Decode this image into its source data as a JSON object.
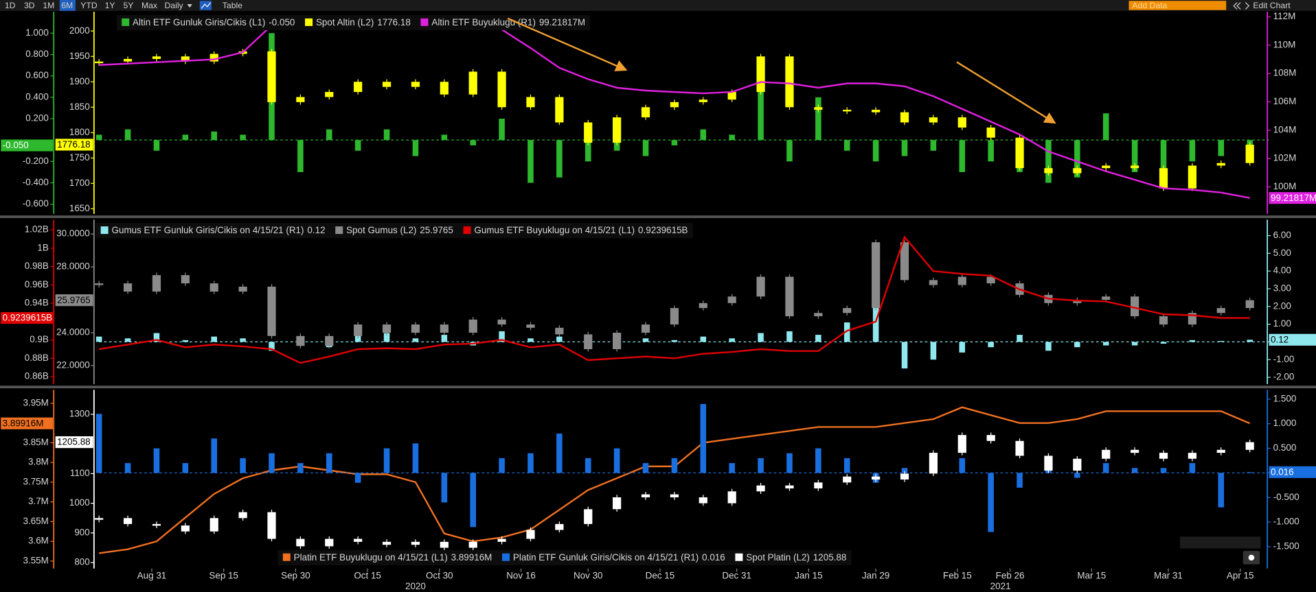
{
  "toolbar": {
    "buttons": [
      "1D",
      "3D",
      "1M",
      "6M",
      "YTD",
      "1Y",
      "5Y",
      "Max",
      "Daily",
      "Table"
    ],
    "add_data": "Add Data",
    "edit_chart": "Edit Chart"
  },
  "chart_data": [
    {
      "type": "combo",
      "x": [
        "2020-08-20",
        "2020-08-26",
        "2020-09-01",
        "2020-09-07",
        "2020-09-13",
        "2020-09-19",
        "2020-09-25",
        "2020-10-01",
        "2020-10-07",
        "2020-10-13",
        "2020-10-19",
        "2020-10-25",
        "2020-10-31",
        "2020-11-06",
        "2020-11-12",
        "2020-11-18",
        "2020-11-24",
        "2020-11-30",
        "2020-12-06",
        "2020-12-12",
        "2020-12-18",
        "2020-12-24",
        "2020-12-30",
        "2021-01-05",
        "2021-01-11",
        "2021-01-17",
        "2021-01-23",
        "2021-01-29",
        "2021-02-04",
        "2021-02-10",
        "2021-02-16",
        "2021-02-22",
        "2021-02-28",
        "2021-03-06",
        "2021-03-12",
        "2021-03-18",
        "2021-03-24",
        "2021-03-30",
        "2021-04-05",
        "2021-04-11",
        "2021-04-17"
      ],
      "xlim": [
        "2020-08-20",
        "2021-04-21"
      ],
      "axes": {
        "L1": {
          "ylim": [
            -0.69,
            1.2
          ],
          "yticks": [
            {
              "value": 1,
              "label": "1.000"
            },
            {
              "value": 0.8,
              "label": "0.800"
            },
            {
              "value": 0.6,
              "label": "0.600"
            },
            {
              "value": 0.4,
              "label": "0.400"
            },
            {
              "value": 0.2,
              "label": "0.200"
            },
            {
              "value": -0.2,
              "label": "-0.200"
            },
            {
              "value": -0.4,
              "label": "-0.400"
            },
            {
              "value": -0.6,
              "label": "-0.600"
            }
          ]
        },
        "L2": {
          "ylim": [
            1640,
            2038
          ],
          "yticks": [
            2000,
            1950,
            1900,
            1850,
            1800,
            1750,
            1700,
            1650
          ]
        },
        "R1": {
          "ylim": [
            98.1,
            112.36
          ],
          "yticks": [
            {
              "value": 112,
              "label": "112M"
            },
            {
              "value": 110,
              "label": "110M"
            },
            {
              "value": 108,
              "label": "108M"
            },
            {
              "value": 106,
              "label": "106M"
            },
            {
              "value": 104,
              "label": "104M"
            },
            {
              "value": 102,
              "label": "102M"
            },
            {
              "value": 100,
              "label": "100M"
            }
          ]
        }
      },
      "series": [
        {
          "name": "Altin ETF Gunluk Giris/Cikis (L1)",
          "type": "bar",
          "axis": "L1",
          "color": "#2db82d",
          "last": {
            "value": -0.05,
            "label": "-0.050"
          },
          "values": [
            0.05,
            0.1,
            -0.1,
            0.05,
            0.08,
            0.05,
            1.0,
            -0.3,
            0.1,
            -0.1,
            0.1,
            -0.15,
            0.05,
            -0.05,
            0.2,
            -0.4,
            -0.35,
            -0.2,
            -0.1,
            -0.15,
            -0.05,
            0.1,
            0.05,
            0.5,
            -0.2,
            0.4,
            -0.1,
            -0.2,
            -0.15,
            -0.1,
            -0.3,
            -0.2,
            -0.3,
            -0.4,
            -0.35,
            0.25,
            -0.3,
            -0.3,
            -0.2,
            -0.15,
            -0.05
          ]
        },
        {
          "name": "Spot Altin (L2)",
          "type": "candlestick",
          "axis": "L2",
          "color": "#ffff00",
          "last": 1776.18,
          "values": [
            1940,
            1945,
            1950,
            1940,
            1955,
            1960,
            1860,
            1870,
            1880,
            1900,
            1890,
            1900,
            1875,
            1920,
            1850,
            1870,
            1820,
            1780,
            1830,
            1850,
            1860,
            1865,
            1880,
            1950,
            1850,
            1845,
            1845,
            1840,
            1820,
            1830,
            1810,
            1790,
            1730,
            1720,
            1730,
            1735,
            1730,
            1690,
            1735,
            1740,
            1776.18
          ]
        },
        {
          "name": "Altin ETF Buyuklugu (R1)",
          "type": "line",
          "axis": "R1",
          "color": "#e020e0",
          "last": {
            "value": 99.21817,
            "label": "99.21817M"
          },
          "values": [
            108.6,
            108.7,
            108.8,
            108.9,
            109.0,
            109.5,
            111.4,
            111.2,
            111.4,
            111.5,
            111.6,
            111.7,
            111.8,
            111.8,
            111.1,
            109.8,
            108.4,
            107.6,
            107.0,
            106.8,
            106.7,
            106.6,
            106.7,
            107.4,
            107.3,
            107.0,
            107.3,
            107.3,
            107.1,
            106.4,
            105.5,
            104.6,
            103.7,
            102.5,
            101.8,
            101.1,
            100.5,
            99.9,
            99.8,
            99.6,
            99.22
          ]
        }
      ]
    },
    {
      "type": "combo",
      "x": [
        "2020-08-20",
        "2020-08-26",
        "2020-09-01",
        "2020-09-07",
        "2020-09-13",
        "2020-09-19",
        "2020-09-25",
        "2020-10-01",
        "2020-10-07",
        "2020-10-13",
        "2020-10-19",
        "2020-10-25",
        "2020-10-31",
        "2020-11-06",
        "2020-11-12",
        "2020-11-18",
        "2020-11-24",
        "2020-11-30",
        "2020-12-06",
        "2020-12-12",
        "2020-12-18",
        "2020-12-24",
        "2020-12-30",
        "2021-01-05",
        "2021-01-11",
        "2021-01-17",
        "2021-01-23",
        "2021-01-29",
        "2021-02-04",
        "2021-02-10",
        "2021-02-16",
        "2021-02-22",
        "2021-02-28",
        "2021-03-06",
        "2021-03-12",
        "2021-03-18",
        "2021-03-24",
        "2021-03-30",
        "2021-04-05",
        "2021-04-11",
        "2021-04-17"
      ],
      "xlim": [
        "2020-08-20",
        "2021-04-21"
      ],
      "axes": {
        "L1": {
          "ylim": [
            0.852,
            1.031
          ],
          "yticks": [
            {
              "value": 1.02,
              "label": "1.02B"
            },
            {
              "value": 1,
              "label": "1B"
            },
            {
              "value": 0.98,
              "label": "0.98B"
            },
            {
              "value": 0.96,
              "label": "0.96B"
            },
            {
              "value": 0.94,
              "label": "0.94B"
            },
            {
              "value": 0.9,
              "label": "0.9B"
            },
            {
              "value": 0.88,
              "label": "0.88B"
            },
            {
              "value": 0.86,
              "label": "0.86B"
            }
          ]
        },
        "L2": {
          "ylim": [
            20.88,
            30.87
          ],
          "yticks": [
            {
              "value": 30,
              "label": "30.0000"
            },
            {
              "value": 28,
              "label": "28.0000"
            },
            {
              "value": 24,
              "label": "24.0000"
            },
            {
              "value": 22,
              "label": "22.0000"
            }
          ]
        },
        "R1": {
          "ylim": [
            -2.38,
            6.9
          ],
          "yticks": [
            {
              "value": 6,
              "label": "6.00"
            },
            {
              "value": 5,
              "label": "5.00"
            },
            {
              "value": 4,
              "label": "4.00"
            },
            {
              "value": 3,
              "label": "3.00"
            },
            {
              "value": 2,
              "label": "2.00"
            },
            {
              "value": 1,
              "label": "1.00"
            },
            {
              "value": -1,
              "label": "-1.00"
            },
            {
              "value": -2,
              "label": "-2.00"
            }
          ]
        }
      },
      "series": [
        {
          "name": "Gumus ETF Gunluk Giris/Cikis on 4/15/21 (R1)",
          "type": "bar",
          "axis": "R1",
          "color": "#8ee8ee",
          "last": 0.12,
          "values": [
            0.3,
            0.2,
            0.5,
            0.1,
            0.3,
            0.2,
            -0.5,
            0.3,
            -0.3,
            0.8,
            0.5,
            0.2,
            0.4,
            -0.2,
            0.6,
            0.2,
            0.3,
            0.4,
            -0.3,
            0.2,
            0.1,
            0.3,
            0.2,
            0.5,
            0.6,
            0.4,
            1.1,
            2.5,
            -1.5,
            -1.0,
            -0.6,
            -0.3,
            0.4,
            -0.5,
            -0.3,
            -0.2,
            -0.2,
            -0.1,
            0.1,
            0.05,
            0.12
          ]
        },
        {
          "name": "Spot Gumus (L2)",
          "type": "candlestick",
          "axis": "L2",
          "color": "#8a8a8a",
          "last": 25.9765,
          "values": [
            27,
            26.5,
            27.5,
            27,
            26.5,
            26.8,
            23.8,
            23.2,
            23.8,
            24.5,
            24,
            24.5,
            24,
            24.8,
            24.5,
            24.3,
            23.9,
            23,
            24,
            24.5,
            25.5,
            25.8,
            26.2,
            27.4,
            25,
            25.2,
            25.5,
            29.5,
            27.2,
            26.9,
            27.4,
            27,
            26.3,
            25.8,
            26,
            26.2,
            25,
            24.5,
            25.2,
            25.5,
            25.9765
          ]
        },
        {
          "name": "Gumus ETF Buyuklugu on 4/15/21 (L1)",
          "type": "line",
          "axis": "L1",
          "color": "#e00000",
          "last": {
            "value": 0.9239615,
            "label": "0.9239615B"
          },
          "values": [
            0.89,
            0.895,
            0.9,
            0.892,
            0.895,
            0.893,
            0.89,
            0.875,
            0.882,
            0.89,
            0.891,
            0.89,
            0.895,
            0.896,
            0.9,
            0.892,
            0.895,
            0.878,
            0.88,
            0.882,
            0.88,
            0.885,
            0.887,
            0.89,
            0.888,
            0.888,
            0.91,
            0.92,
            1.012,
            0.975,
            0.972,
            0.97,
            0.955,
            0.945,
            0.943,
            0.942,
            0.935,
            0.928,
            0.927,
            0.924,
            0.9239615
          ]
        }
      ]
    },
    {
      "type": "combo",
      "x": [
        "2020-08-20",
        "2020-08-26",
        "2020-09-01",
        "2020-09-07",
        "2020-09-13",
        "2020-09-19",
        "2020-09-25",
        "2020-10-01",
        "2020-10-07",
        "2020-10-13",
        "2020-10-19",
        "2020-10-25",
        "2020-10-31",
        "2020-11-06",
        "2020-11-12",
        "2020-11-18",
        "2020-11-24",
        "2020-11-30",
        "2020-12-06",
        "2020-12-12",
        "2020-12-18",
        "2020-12-24",
        "2020-12-30",
        "2021-01-05",
        "2021-01-11",
        "2021-01-17",
        "2021-01-23",
        "2021-01-29",
        "2021-02-04",
        "2021-02-10",
        "2021-02-16",
        "2021-02-22",
        "2021-02-28",
        "2021-03-06",
        "2021-03-12",
        "2021-03-18",
        "2021-03-24",
        "2021-03-30",
        "2021-04-05",
        "2021-04-11",
        "2021-04-17"
      ],
      "xlim": [
        "2020-08-20",
        "2021-04-21"
      ],
      "xticks": [
        {
          "value": "2020-08-31",
          "label": "Aug 31"
        },
        {
          "value": "2020-09-15",
          "label": "Sep 15"
        },
        {
          "value": "2020-09-30",
          "label": "Sep 30"
        },
        {
          "value": "2020-10-15",
          "label": "Oct 15"
        },
        {
          "value": "2020-10-30",
          "label": "Oct 30"
        },
        {
          "value": "2020-11-16",
          "label": "Nov 16"
        },
        {
          "value": "2020-11-30",
          "label": "Nov 30"
        },
        {
          "value": "2020-12-15",
          "label": "Dec 15"
        },
        {
          "value": "2020-12-31",
          "label": "Dec 31"
        },
        {
          "value": "2021-01-15",
          "label": "Jan 15"
        },
        {
          "value": "2021-01-29",
          "label": "Jan 29"
        },
        {
          "value": "2021-02-15",
          "label": "Feb 15"
        },
        {
          "value": "2021-02-26",
          "label": "Feb 26"
        },
        {
          "value": "2021-03-15",
          "label": "Mar 15"
        },
        {
          "value": "2021-03-31",
          "label": "Mar 31"
        },
        {
          "value": "2021-04-15",
          "label": "Apr 15"
        }
      ],
      "year_ticks": [
        {
          "value": "2020-10-25",
          "label": "2020"
        },
        {
          "value": "2021-02-24",
          "label": "2021"
        }
      ],
      "axes": {
        "L1": {
          "ylim": [
            3.531,
            3.984
          ],
          "yticks": [
            {
              "value": 3.95,
              "label": "3.95M"
            },
            {
              "value": 3.85,
              "label": "3.85M"
            },
            {
              "value": 3.8,
              "label": "3.8M"
            },
            {
              "value": 3.75,
              "label": "3.75M"
            },
            {
              "value": 3.7,
              "label": "3.7M"
            },
            {
              "value": 3.65,
              "label": "3.65M"
            },
            {
              "value": 3.6,
              "label": "3.6M"
            },
            {
              "value": 3.55,
              "label": "3.55M"
            }
          ]
        },
        "L2": {
          "ylim": [
            780,
            1382
          ],
          "yticks": [
            1300,
            1100,
            1000,
            900,
            800
          ]
        },
        "R1": {
          "ylim": [
            -1.943,
            1.687
          ],
          "yticks": [
            {
              "value": 1.5,
              "label": "1.500"
            },
            {
              "value": 1,
              "label": "1.000"
            },
            {
              "value": 0.5,
              "label": "0.500"
            },
            {
              "value": -0.5,
              "label": "-0.500"
            },
            {
              "value": -1,
              "label": "-1.000"
            },
            {
              "value": -1.5,
              "label": "-1.500"
            }
          ]
        }
      },
      "series": [
        {
          "name": "Platin ETF Buyuklugu on 4/15/21 (L1)",
          "type": "line",
          "axis": "L1",
          "color": "#f07020",
          "last": {
            "value": 3.89916,
            "label": "3.89916M"
          },
          "values": [
            3.57,
            3.58,
            3.6,
            3.66,
            3.72,
            3.76,
            3.78,
            3.79,
            3.78,
            3.77,
            3.77,
            3.75,
            3.62,
            3.6,
            3.61,
            3.63,
            3.68,
            3.73,
            3.76,
            3.79,
            3.79,
            3.85,
            3.86,
            3.87,
            3.88,
            3.89,
            3.89,
            3.89,
            3.9,
            3.91,
            3.94,
            3.92,
            3.9,
            3.9,
            3.91,
            3.93,
            3.93,
            3.93,
            3.93,
            3.93,
            3.89916
          ]
        },
        {
          "name": "Platin ETF Gunluk Giris/Cikis on 4/15/21 (R1)",
          "type": "bar",
          "axis": "R1",
          "color": "#1a6fe0",
          "last": 0.016,
          "values": [
            1.2,
            0.2,
            0.5,
            0.2,
            0.7,
            0.3,
            0.4,
            0.2,
            0.4,
            -0.2,
            0.5,
            0.6,
            -0.6,
            -1.1,
            0.3,
            0.4,
            0.8,
            0.3,
            0.5,
            0.2,
            0.3,
            1.4,
            0.2,
            0.3,
            0.4,
            0.5,
            0.3,
            -0.2,
            0.1,
            0.2,
            0.3,
            -1.2,
            -0.3,
            0.1,
            -0.1,
            0.2,
            0.1,
            0.1,
            0.2,
            -0.7,
            0.016
          ]
        },
        {
          "name": "Spot Platin (L2)",
          "type": "candlestick",
          "axis": "L2",
          "color": "#ffffff",
          "last": 1205.88,
          "values": [
            950,
            930,
            925,
            905,
            950,
            970,
            880,
            855,
            880,
            870,
            860,
            870,
            850,
            870,
            880,
            910,
            930,
            980,
            1020,
            1030,
            1020,
            1000,
            1040,
            1060,
            1050,
            1070,
            1090,
            1080,
            1100,
            1170,
            1230,
            1210,
            1160,
            1110,
            1150,
            1180,
            1170,
            1150,
            1170,
            1180,
            1205.88
          ]
        }
      ]
    }
  ]
}
